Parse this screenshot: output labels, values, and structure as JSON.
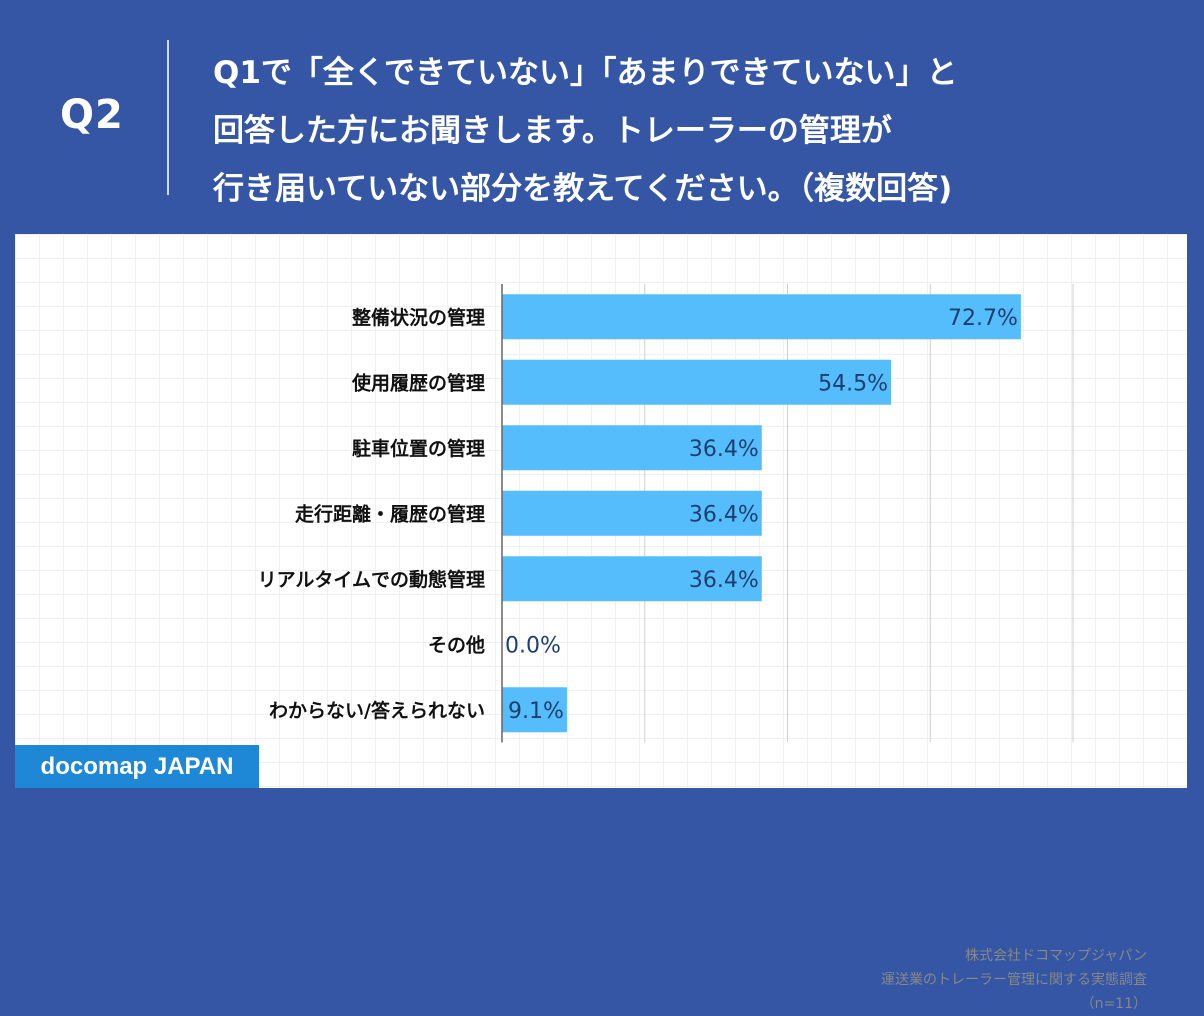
{
  "header": {
    "q_label": "Q2",
    "question_lines": [
      "Q1で「全くできていない」「あまりできていない」と",
      "回答した方にお聞きします。トレーラーの管理が",
      "行き届いていない部分を教えてください。（複数回答)"
    ]
  },
  "chart_data": {
    "type": "bar",
    "orientation": "horizontal",
    "categories": [
      "整備状況の管理",
      "使用履歴の管理",
      "駐車位置の管理",
      "走行距離・履歴の管理",
      "リアルタイムでの動態管理",
      "その他",
      "わからない/答えられない"
    ],
    "values": [
      72.7,
      54.5,
      36.4,
      36.4,
      36.4,
      0.0,
      9.1
    ],
    "value_labels": [
      "72.7%",
      "54.5%",
      "36.4%",
      "36.4%",
      "36.4%",
      "0.0%",
      "9.1%"
    ],
    "xlim": [
      0,
      80
    ],
    "gridlines": [
      0,
      20,
      40,
      60,
      80
    ],
    "bar_color": "#55bdfc",
    "label_color": "#1d3f6e"
  },
  "footer": {
    "company": "株式会社ドコマップジャパン",
    "survey": "運送業のトレーラー管理に関する実態調査",
    "sample": "（n=11）"
  },
  "brand": "docomap JAPAN"
}
